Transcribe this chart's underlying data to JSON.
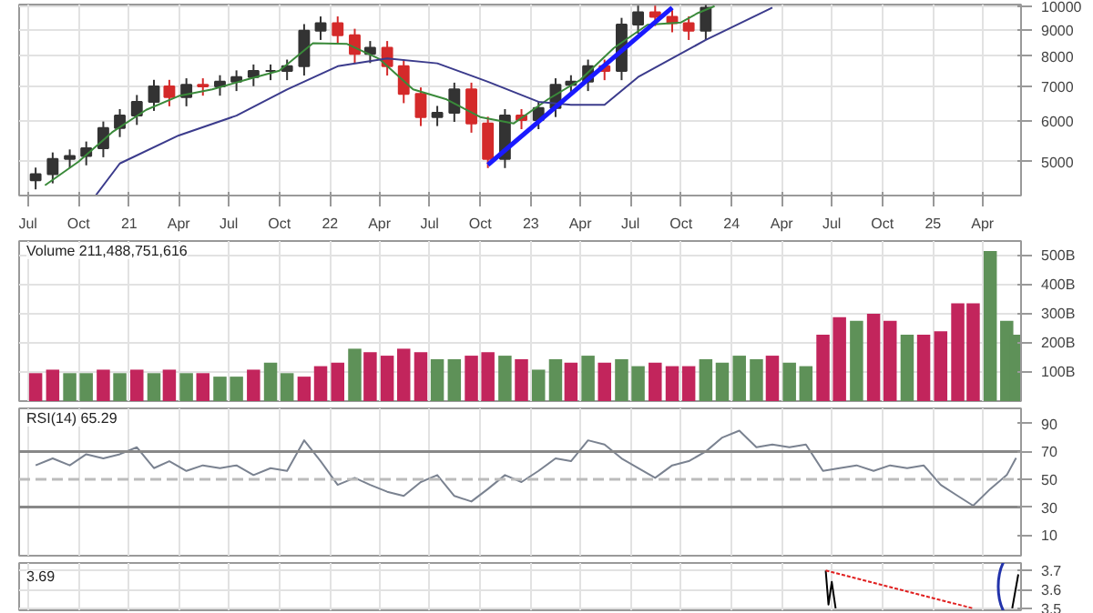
{
  "chart_data": [
    {
      "type": "candlestick",
      "log": true,
      "grid": true,
      "tick_labels": "xy",
      "xlim": [
        "2020-06-15",
        "2025-06-10"
      ],
      "ylim": [
        4300,
        10070
      ],
      "yticks": [
        5000,
        6000,
        7000,
        8000,
        9000,
        10000
      ],
      "xticks": [
        {
          "value": "2020-07-01",
          "label": "Jul"
        },
        {
          "value": "2020-10-01",
          "label": "Oct"
        },
        {
          "value": "2021-01-01",
          "label": "21"
        },
        {
          "value": "2021-04-01",
          "label": "Apr"
        },
        {
          "value": "2021-07-01",
          "label": "Jul"
        },
        {
          "value": "2021-10-01",
          "label": "Oct"
        },
        {
          "value": "2022-01-01",
          "label": "22"
        },
        {
          "value": "2022-04-01",
          "label": "Apr"
        },
        {
          "value": "2022-07-01",
          "label": "Jul"
        },
        {
          "value": "2022-10-01",
          "label": "Oct"
        },
        {
          "value": "2023-01-01",
          "label": "23"
        },
        {
          "value": "2023-04-01",
          "label": "Apr"
        },
        {
          "value": "2023-07-01",
          "label": "Jul"
        },
        {
          "value": "2023-10-01",
          "label": "Oct"
        },
        {
          "value": "2024-01-01",
          "label": "24"
        },
        {
          "value": "2024-04-01",
          "label": "Apr"
        },
        {
          "value": "2024-07-01",
          "label": "Jul"
        },
        {
          "value": "2024-10-01",
          "label": "Oct"
        },
        {
          "value": "2025-01-01",
          "label": "25"
        },
        {
          "value": "2025-04-01",
          "label": "Apr"
        }
      ],
      "x": [
        "2020-07-15",
        "2020-08-15",
        "2020-09-15",
        "2020-10-15",
        "2020-11-15",
        "2020-12-15",
        "2021-01-15",
        "2021-02-15",
        "2021-03-15",
        "2021-04-15",
        "2021-05-15",
        "2021-06-15",
        "2021-07-15",
        "2021-08-15",
        "2021-09-15",
        "2021-10-15",
        "2021-11-15",
        "2021-12-15",
        "2022-01-15",
        "2022-02-15",
        "2022-03-15",
        "2022-04-15",
        "2022-05-15",
        "2022-06-15",
        "2022-07-15",
        "2022-08-15",
        "2022-09-15",
        "2022-10-15",
        "2022-11-15",
        "2022-12-15",
        "2023-01-15",
        "2023-02-15",
        "2023-03-15",
        "2023-04-15",
        "2023-05-15",
        "2023-06-15",
        "2023-07-15",
        "2023-08-15",
        "2023-09-15",
        "2023-10-15",
        "2023-11-15"
      ],
      "ohlc": [
        [
          4600,
          4870,
          4420,
          4730
        ],
        [
          4730,
          5210,
          4540,
          5060
        ],
        [
          5060,
          5280,
          4860,
          5130
        ],
        [
          5130,
          5470,
          4920,
          5310
        ],
        [
          5310,
          5980,
          5100,
          5810
        ],
        [
          5810,
          6320,
          5580,
          6140
        ],
        [
          6140,
          6730,
          5890,
          6530
        ],
        [
          6530,
          7200,
          6270,
          6990
        ],
        [
          6990,
          7200,
          6400,
          6670
        ],
        [
          6670,
          7250,
          6400,
          7040
        ],
        [
          7040,
          7250,
          6710,
          6990
        ],
        [
          6990,
          7350,
          6710,
          7140
        ],
        [
          7140,
          7510,
          6850,
          7290
        ],
        [
          7290,
          7710,
          7000,
          7490
        ],
        [
          7490,
          7710,
          7190,
          7490
        ],
        [
          7490,
          7880,
          7190,
          7650
        ],
        [
          7650,
          9230,
          7340,
          8960
        ],
        [
          8960,
          9550,
          8600,
          9270
        ],
        [
          9270,
          9550,
          8430,
          8780
        ],
        [
          8780,
          9040,
          7760,
          8080
        ],
        [
          8080,
          8560,
          7760,
          8310
        ],
        [
          8310,
          8560,
          7340,
          7650
        ],
        [
          7650,
          7880,
          6490,
          6760
        ],
        [
          6760,
          6960,
          5860,
          6100
        ],
        [
          6100,
          6410,
          5860,
          6220
        ],
        [
          6220,
          7110,
          5970,
          6900
        ],
        [
          6900,
          7110,
          5690,
          5930
        ],
        [
          5930,
          6110,
          4860,
          5060
        ],
        [
          5060,
          6320,
          4860,
          6140
        ],
        [
          6140,
          6320,
          5780,
          6020
        ],
        [
          6020,
          6540,
          5780,
          6350
        ],
        [
          6350,
          7250,
          6100,
          7040
        ],
        [
          7040,
          7350,
          6760,
          7140
        ],
        [
          7140,
          7880,
          6850,
          7650
        ],
        [
          7650,
          7880,
          7190,
          7490
        ],
        [
          7490,
          9490,
          7190,
          9210
        ],
        [
          9210,
          10020,
          8840,
          9730
        ],
        [
          9730,
          10020,
          9150,
          9530
        ],
        [
          9530,
          9820,
          8900,
          9270
        ],
        [
          9270,
          9550,
          8600,
          8960
        ],
        [
          8960,
          10050,
          8600,
          9930
        ]
      ],
      "colors": [
        "#333333",
        "#333333",
        "#333333",
        "#333333",
        "#333333",
        "#333333",
        "#333333",
        "#333333",
        "#d42a2a",
        "#333333",
        "#d42a2a",
        "#333333",
        "#333333",
        "#333333",
        "#333333",
        "#333333",
        "#333333",
        "#333333",
        "#d42a2a",
        "#d42a2a",
        "#333333",
        "#d42a2a",
        "#d42a2a",
        "#d42a2a",
        "#333333",
        "#333333",
        "#d42a2a",
        "#d42a2a",
        "#333333",
        "#d42a2a",
        "#333333",
        "#333333",
        "#333333",
        "#333333",
        "#d42a2a",
        "#333333",
        "#333333",
        "#d42a2a",
        "#d42a2a",
        "#d42a2a",
        "#333333"
      ],
      "series": [
        {
          "type": "line",
          "color": "#3a8a3a",
          "x": [
            "2020-08-01",
            "2020-10-01",
            "2020-12-01",
            "2021-02-01",
            "2021-04-01",
            "2021-06-01",
            "2021-08-01",
            "2021-10-01",
            "2021-12-01",
            "2022-02-01",
            "2022-04-01",
            "2022-06-01",
            "2022-08-01",
            "2022-10-01",
            "2022-12-01",
            "2023-02-01",
            "2023-04-01",
            "2023-06-01",
            "2023-08-01",
            "2023-10-01",
            "2023-11-01",
            "2023-12-01"
          ],
          "values": [
            4500,
            5000,
            5700,
            6300,
            6700,
            6900,
            7200,
            7500,
            8480,
            8450,
            7900,
            6900,
            6600,
            6100,
            5930,
            6600,
            7200,
            8300,
            9200,
            9300,
            9700,
            10000
          ]
        },
        {
          "type": "line",
          "color": "#3b3b8c",
          "x": [
            "2020-11-01",
            "2020-12-15",
            "2021-04-01",
            "2021-07-15",
            "2021-10-15",
            "2022-01-15",
            "2022-04-15",
            "2022-07-15",
            "2022-10-15",
            "2023-01-15",
            "2023-03-15",
            "2023-05-15",
            "2023-07-15",
            "2023-11-15",
            "2024-03-15"
          ],
          "values": [
            4300,
            4960,
            5620,
            6140,
            6900,
            7650,
            7920,
            7750,
            7140,
            6530,
            6440,
            6440,
            7290,
            8600,
            9930
          ]
        },
        {
          "type": "line",
          "color": "#1a1aff",
          "x": [
            "2022-10-15",
            "2023-09-15"
          ],
          "values": [
            4930,
            9930
          ]
        }
      ]
    },
    {
      "type": "bar",
      "title": "Volume 211,488,751,616",
      "grid": true,
      "tick_labels": "y",
      "xlim": [
        "2020-06-15",
        "2025-06-10"
      ],
      "ylim": [
        0,
        550
      ],
      "yticks": [
        {
          "value": 100,
          "label": "100B"
        },
        {
          "value": 200,
          "label": "200B"
        },
        {
          "value": 300,
          "label": "300B"
        },
        {
          "value": 400,
          "label": "400B"
        },
        {
          "value": 500,
          "label": "500B"
        }
      ],
      "xticks": [
        {
          "value": "2020-07-01",
          "label": null
        },
        {
          "value": "2020-10-01",
          "label": null
        },
        {
          "value": "2021-01-01",
          "label": null
        },
        {
          "value": "2021-04-01",
          "label": null
        },
        {
          "value": "2021-07-01",
          "label": null
        },
        {
          "value": "2021-10-01",
          "label": null
        },
        {
          "value": "2022-01-01",
          "label": null
        },
        {
          "value": "2022-04-01",
          "label": null
        },
        {
          "value": "2022-07-01",
          "label": null
        },
        {
          "value": "2022-10-01",
          "label": null
        },
        {
          "value": "2023-01-01",
          "label": null
        },
        {
          "value": "2023-04-01",
          "label": null
        },
        {
          "value": "2023-07-01",
          "label": null
        },
        {
          "value": "2023-10-01",
          "label": null
        },
        {
          "value": "2024-01-01",
          "label": null
        },
        {
          "value": "2024-04-01",
          "label": null
        },
        {
          "value": "2024-07-01",
          "label": null
        },
        {
          "value": "2024-10-01",
          "label": null
        },
        {
          "value": "2025-01-01",
          "label": null
        },
        {
          "value": "2025-04-01",
          "label": null
        }
      ],
      "x": [
        "2020-07-15",
        "2020-08-15",
        "2020-09-15",
        "2020-10-15",
        "2020-11-15",
        "2020-12-15",
        "2021-01-15",
        "2021-02-15",
        "2021-03-15",
        "2021-04-15",
        "2021-05-15",
        "2021-06-15",
        "2021-07-15",
        "2021-08-15",
        "2021-09-15",
        "2021-10-15",
        "2021-11-15",
        "2021-12-15",
        "2022-01-15",
        "2022-02-15",
        "2022-03-15",
        "2022-04-15",
        "2022-05-15",
        "2022-06-15",
        "2022-07-15",
        "2022-08-15",
        "2022-09-15",
        "2022-10-15",
        "2022-11-15",
        "2022-12-15",
        "2023-01-15",
        "2023-02-15",
        "2023-03-15",
        "2023-04-15",
        "2023-05-15",
        "2023-06-15",
        "2023-07-15",
        "2023-08-15",
        "2023-09-15",
        "2023-10-15",
        "2023-11-15",
        "2023-12-15",
        "2024-01-15",
        "2024-02-15",
        "2024-03-15",
        "2024-04-15",
        "2024-05-15",
        "2024-06-15",
        "2024-07-15",
        "2024-08-15",
        "2024-09-15",
        "2024-10-15",
        "2024-11-15",
        "2024-12-15",
        "2025-01-15",
        "2025-02-15",
        "2025-03-15",
        "2025-04-15",
        "2025-05-15",
        "2025-06-01"
      ],
      "values": [
        96,
        108,
        96,
        96,
        108,
        96,
        108,
        96,
        108,
        96,
        96,
        84,
        84,
        108,
        132,
        96,
        84,
        120,
        132,
        180,
        168,
        156,
        180,
        168,
        144,
        144,
        156,
        168,
        156,
        144,
        108,
        144,
        132,
        156,
        132,
        144,
        120,
        132,
        120,
        120,
        144,
        132,
        156,
        144,
        156,
        132,
        120,
        228,
        288,
        276,
        300,
        276,
        228,
        228,
        240,
        336,
        336,
        516,
        276,
        228
      ],
      "colors": [
        "#c2255c",
        "#c2255c",
        "#5e9158",
        "#5e9158",
        "#c2255c",
        "#5e9158",
        "#c2255c",
        "#5e9158",
        "#c2255c",
        "#5e9158",
        "#c2255c",
        "#5e9158",
        "#5e9158",
        "#c2255c",
        "#5e9158",
        "#5e9158",
        "#c2255c",
        "#c2255c",
        "#c2255c",
        "#5e9158",
        "#c2255c",
        "#c2255c",
        "#c2255c",
        "#c2255c",
        "#5e9158",
        "#5e9158",
        "#c2255c",
        "#c2255c",
        "#5e9158",
        "#c2255c",
        "#5e9158",
        "#5e9158",
        "#c2255c",
        "#5e9158",
        "#c2255c",
        "#5e9158",
        "#5e9158",
        "#c2255c",
        "#c2255c",
        "#c2255c",
        "#5e9158",
        "#5e9158",
        "#5e9158",
        "#5e9158",
        "#c2255c",
        "#5e9158",
        "#5e9158",
        "#c2255c",
        "#c2255c",
        "#5e9158",
        "#c2255c",
        "#c2255c",
        "#5e9158",
        "#c2255c",
        "#c2255c",
        "#c2255c",
        "#c2255c",
        "#5e9158",
        "#5e9158",
        "#5e9158"
      ]
    },
    {
      "type": "line",
      "title": "RSI(14) 65.29",
      "grid": "x",
      "tick_labels": "y",
      "xlim": [
        "2020-06-15",
        "2025-06-10"
      ],
      "ylim": [
        -5,
        101
      ],
      "yticks": [
        10,
        30,
        50,
        70,
        90
      ],
      "xticks": [
        {
          "value": "2020-07-01",
          "label": null
        },
        {
          "value": "2020-10-01",
          "label": null
        },
        {
          "value": "2021-01-01",
          "label": null
        },
        {
          "value": "2021-04-01",
          "label": null
        },
        {
          "value": "2021-07-01",
          "label": null
        },
        {
          "value": "2021-10-01",
          "label": null
        },
        {
          "value": "2022-01-01",
          "label": null
        },
        {
          "value": "2022-04-01",
          "label": null
        },
        {
          "value": "2022-07-01",
          "label": null
        },
        {
          "value": "2022-10-01",
          "label": null
        },
        {
          "value": "2023-01-01",
          "label": null
        },
        {
          "value": "2023-04-01",
          "label": null
        },
        {
          "value": "2023-07-01",
          "label": null
        },
        {
          "value": "2023-10-01",
          "label": null
        },
        {
          "value": "2024-01-01",
          "label": null
        },
        {
          "value": "2024-04-01",
          "label": null
        },
        {
          "value": "2024-07-01",
          "label": null
        },
        {
          "value": "2024-10-01",
          "label": null
        },
        {
          "value": "2025-01-01",
          "label": null
        },
        {
          "value": "2025-04-01",
          "label": null
        }
      ],
      "ref_lines": [
        {
          "axis": "y",
          "value": 30,
          "color": "#888888",
          "line_style": "solid"
        },
        {
          "axis": "y",
          "value": 70,
          "color": "#888888",
          "line_style": "solid"
        },
        {
          "axis": "y",
          "value": 50,
          "color": "#bbbbbb",
          "line_style": "dashed"
        }
      ],
      "series": [
        {
          "color": "#7a8290",
          "x": [
            "2020-07-15",
            "2020-08-15",
            "2020-09-15",
            "2020-10-15",
            "2020-11-15",
            "2020-12-15",
            "2021-01-15",
            "2021-02-15",
            "2021-03-15",
            "2021-04-15",
            "2021-05-15",
            "2021-06-15",
            "2021-07-15",
            "2021-08-15",
            "2021-09-15",
            "2021-10-15",
            "2021-11-15",
            "2021-12-15",
            "2022-01-15",
            "2022-02-15",
            "2022-03-15",
            "2022-04-15",
            "2022-05-15",
            "2022-06-15",
            "2022-07-15",
            "2022-08-15",
            "2022-09-15",
            "2022-10-15",
            "2022-11-15",
            "2022-12-15",
            "2023-01-15",
            "2023-02-15",
            "2023-03-15",
            "2023-04-15",
            "2023-05-15",
            "2023-06-15",
            "2023-07-15",
            "2023-08-15",
            "2023-09-15",
            "2023-10-15",
            "2023-11-15",
            "2023-12-15",
            "2024-01-15",
            "2024-02-15",
            "2024-03-15",
            "2024-04-15",
            "2024-05-15",
            "2024-06-15",
            "2024-07-15",
            "2024-08-15",
            "2024-09-15",
            "2024-10-15",
            "2024-11-15",
            "2024-12-15",
            "2025-01-15",
            "2025-02-15",
            "2025-03-15",
            "2025-04-15",
            "2025-05-15",
            "2025-06-01"
          ],
          "values": [
            60,
            65,
            60,
            68,
            65,
            68,
            73,
            58,
            63,
            56,
            60,
            58,
            60,
            53,
            58,
            56,
            78,
            63,
            46,
            51,
            46,
            41,
            38,
            48,
            53,
            38,
            34,
            43,
            53,
            48,
            56,
            65,
            63,
            78,
            75,
            65,
            58,
            51,
            60,
            63,
            70,
            80,
            85,
            73,
            75,
            73,
            75,
            56,
            58,
            60,
            56,
            60,
            58,
            60,
            46,
            38,
            31,
            43,
            53,
            65.29
          ]
        }
      ]
    },
    {
      "type": "line",
      "grid": true,
      "tick_labels": "y",
      "annotations": [
        "3.69"
      ],
      "xlim": [
        "2020-06-15",
        "2025-06-10"
      ],
      "ylim": [
        3.49,
        3.74
      ],
      "yticks": [
        3.5,
        3.6,
        3.7
      ],
      "xticks": [
        {
          "value": "2020-07-01",
          "label": null
        },
        {
          "value": "2020-10-01",
          "label": null
        },
        {
          "value": "2021-01-01",
          "label": null
        },
        {
          "value": "2021-04-01",
          "label": null
        },
        {
          "value": "2021-07-01",
          "label": null
        },
        {
          "value": "2021-10-01",
          "label": null
        },
        {
          "value": "2022-01-01",
          "label": null
        },
        {
          "value": "2022-04-01",
          "label": null
        },
        {
          "value": "2022-07-01",
          "label": null
        },
        {
          "value": "2022-10-01",
          "label": null
        },
        {
          "value": "2023-01-01",
          "label": null
        },
        {
          "value": "2023-04-01",
          "label": null
        },
        {
          "value": "2023-07-01",
          "label": null
        },
        {
          "value": "2023-10-01",
          "label": null
        },
        {
          "value": "2024-01-01",
          "label": null
        },
        {
          "value": "2024-04-01",
          "label": null
        },
        {
          "value": "2024-07-01",
          "label": null
        },
        {
          "value": "2024-10-01",
          "label": null
        },
        {
          "value": "2025-01-01",
          "label": null
        },
        {
          "value": "2025-04-01",
          "label": null
        }
      ],
      "series": [
        {
          "color": "#000000",
          "line_style": "solid",
          "x": [
            "2024-06-20",
            "2024-06-25",
            "2024-07-01",
            "2024-07-08"
          ],
          "values": [
            3.7,
            3.52,
            3.64,
            3.5
          ]
        },
        {
          "color": "#000000",
          "line_style": "solid",
          "x": [
            "2025-05-25",
            "2025-06-05"
          ],
          "values": [
            3.5,
            3.68
          ]
        },
        {
          "color": "#e02020",
          "line_style": "dotted",
          "x": [
            "2024-06-20",
            "2025-03-15"
          ],
          "values": [
            3.7,
            3.5
          ]
        }
      ]
    }
  ]
}
